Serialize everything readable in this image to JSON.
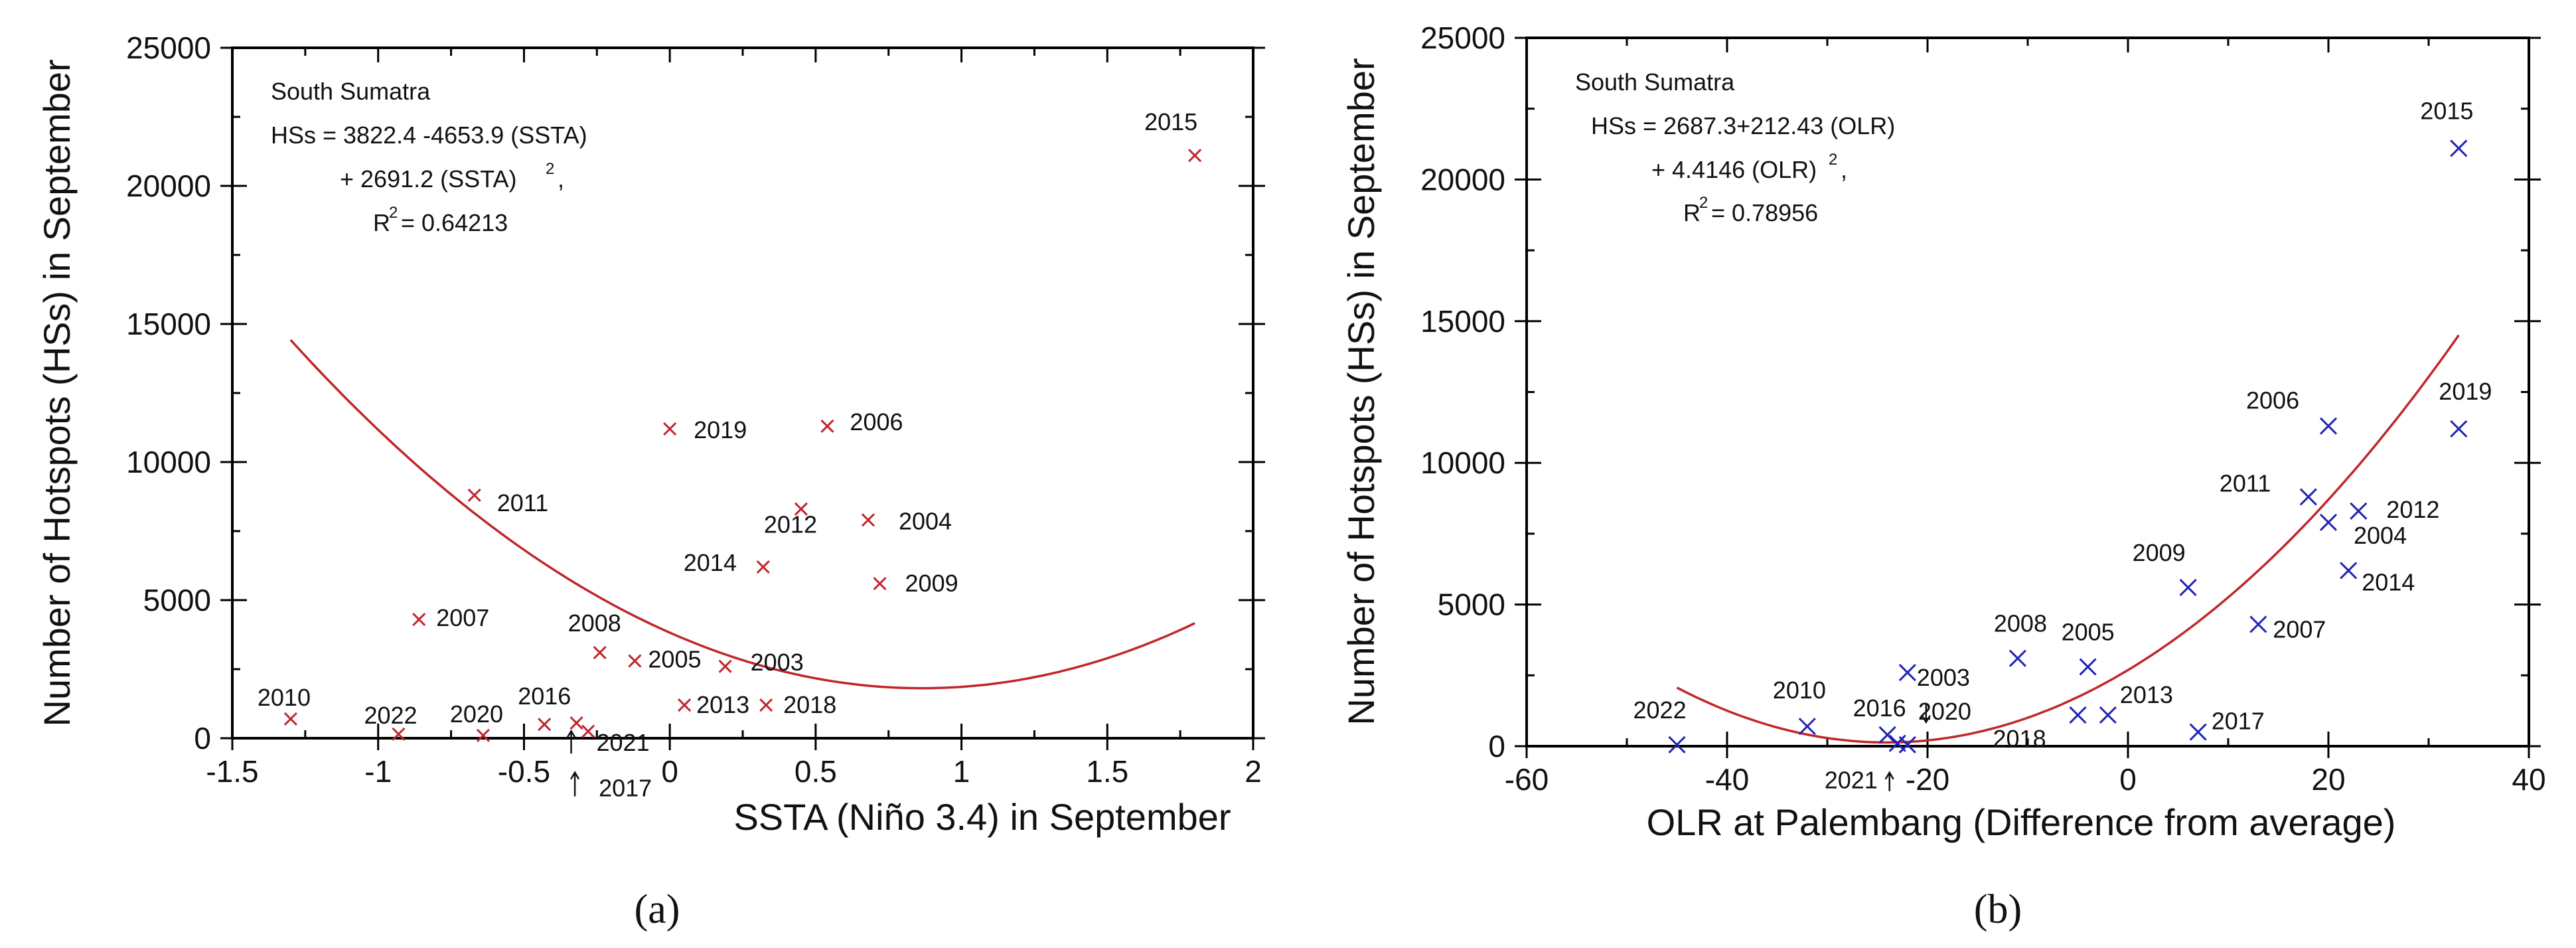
{
  "chart_data": [
    {
      "type": "scatter",
      "panel_label": "(a)",
      "xlabel": "SSTA (Niño 3.4) in September",
      "ylabel": "Number of Hotspots (HSs) in September",
      "xlim": [
        -1.5,
        2
      ],
      "ylim": [
        0,
        25000
      ],
      "xticks": [
        -1.5,
        -1,
        -0.5,
        0,
        0.5,
        1,
        1.5,
        2
      ],
      "xtick_labels": [
        "-1.5",
        "-1",
        "-0.5",
        "0",
        "0.5",
        "1",
        "1.5",
        "2"
      ],
      "yticks": [
        0,
        5000,
        10000,
        15000,
        20000,
        25000
      ],
      "ytick_labels": [
        "0",
        "5000",
        "10000",
        "15000",
        "20000",
        "25000"
      ],
      "annotation_lines": [
        "South Sumatra",
        "HSs = 3822.4 -4653.9 (SSTA)",
        "+ 2691.2 (SSTA)",
        "R",
        "= 0.64213"
      ],
      "annotation_sup": "2",
      "marker": "x",
      "marker_color": "#c0262a",
      "fit_color": "#c0262a",
      "fit": {
        "c0": 3822.4,
        "c1": -4653.9,
        "c2": 2691.2,
        "x_range": [
          -1.3,
          1.8
        ]
      },
      "points": [
        {
          "year": "2015",
          "x": 1.8,
          "y": 21100
        },
        {
          "year": "2019",
          "x": 0.0,
          "y": 11200
        },
        {
          "year": "2006",
          "x": 0.54,
          "y": 11300
        },
        {
          "year": "2011",
          "x": -0.67,
          "y": 8800
        },
        {
          "year": "2012",
          "x": 0.45,
          "y": 8300
        },
        {
          "year": "2004",
          "x": 0.68,
          "y": 7900
        },
        {
          "year": "2014",
          "x": 0.32,
          "y": 6200
        },
        {
          "year": "2009",
          "x": 0.72,
          "y": 5600
        },
        {
          "year": "2007",
          "x": -0.86,
          "y": 4300
        },
        {
          "year": "2008",
          "x": -0.24,
          "y": 3100
        },
        {
          "year": "2005",
          "x": -0.12,
          "y": 2800
        },
        {
          "year": "2003",
          "x": 0.19,
          "y": 2600
        },
        {
          "year": "2013",
          "x": 0.05,
          "y": 1200
        },
        {
          "year": "2018",
          "x": 0.33,
          "y": 1200
        },
        {
          "year": "2010",
          "x": -1.3,
          "y": 700
        },
        {
          "year": "2016",
          "x": -0.43,
          "y": 500
        },
        {
          "year": "2022",
          "x": -0.93,
          "y": 150
        },
        {
          "year": "2020",
          "x": -0.64,
          "y": 100
        },
        {
          "year": "2021",
          "x": -0.32,
          "y": 550
        },
        {
          "year": "2017",
          "x": -0.28,
          "y": 250
        }
      ]
    },
    {
      "type": "scatter",
      "panel_label": "(b)",
      "xlabel": "OLR at Palembang (Difference from average)",
      "ylabel": "Number of Hotspots (HSs) in September",
      "xlim": [
        -60,
        40
      ],
      "ylim": [
        0,
        25000
      ],
      "xticks": [
        -60,
        -40,
        -20,
        0,
        20,
        40
      ],
      "xtick_labels": [
        "-60",
        "-40",
        "-20",
        "0",
        "20",
        "40"
      ],
      "yticks": [
        0,
        5000,
        10000,
        15000,
        20000,
        25000
      ],
      "ytick_labels": [
        "0",
        "5000",
        "10000",
        "15000",
        "20000",
        "25000"
      ],
      "annotation_lines": [
        "South Sumatra",
        "HSs = 2687.3+212.43 (OLR)",
        "+ 4.4146 (OLR)",
        "R",
        "= 0.78956"
      ],
      "annotation_sup": "2",
      "marker": "x",
      "marker_color": "#1f23b4",
      "fit_color": "#c0262a",
      "fit": {
        "c0": 2687.3,
        "c1": 212.43,
        "c2": 4.4146,
        "x_range": [
          -45,
          33
        ]
      },
      "points": [
        {
          "year": "2015",
          "x": 33,
          "y": 21100
        },
        {
          "year": "2006",
          "x": 20,
          "y": 11300
        },
        {
          "year": "2019",
          "x": 33,
          "y": 11200
        },
        {
          "year": "2011",
          "x": 18,
          "y": 8800
        },
        {
          "year": "2012",
          "x": 23,
          "y": 8300
        },
        {
          "year": "2004",
          "x": 20,
          "y": 7900
        },
        {
          "year": "2014",
          "x": 22,
          "y": 6200
        },
        {
          "year": "2009",
          "x": 6,
          "y": 5600
        },
        {
          "year": "2007",
          "x": 13,
          "y": 4300
        },
        {
          "year": "2008",
          "x": -11,
          "y": 3100
        },
        {
          "year": "2005",
          "x": -4,
          "y": 2800
        },
        {
          "year": "2003",
          "x": -22,
          "y": 2600
        },
        {
          "year": "2018",
          "x": -5,
          "y": 1100
        },
        {
          "year": "2013",
          "x": -2,
          "y": 1100
        },
        {
          "year": "2010",
          "x": -32,
          "y": 700
        },
        {
          "year": "2017",
          "x": 7,
          "y": 500
        },
        {
          "year": "2016",
          "x": -24,
          "y": 400
        },
        {
          "year": "2021",
          "x": -23,
          "y": 100
        },
        {
          "year": "2020",
          "x": -22,
          "y": 50
        },
        {
          "year": "2022",
          "x": -45,
          "y": 50
        }
      ]
    }
  ]
}
